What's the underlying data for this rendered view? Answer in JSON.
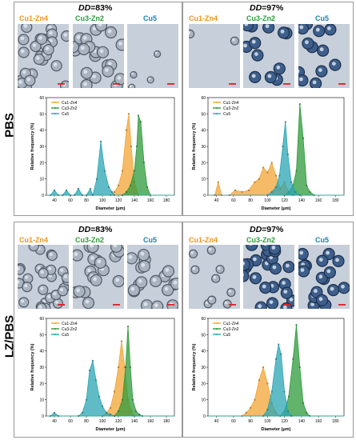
{
  "rows": [
    {
      "label": "PBS"
    },
    {
      "label": "LZ/PBS"
    }
  ],
  "dd_prefix": "DD",
  "dd_values": [
    "=83%",
    "=97%"
  ],
  "samples": [
    "Cu1-Zn4",
    "Cu3-Zn2",
    "Cu5"
  ],
  "colors": {
    "Cu1-Zn4": "#f2a434",
    "Cu3-Zn2": "#2e9a3a",
    "Cu5": "#2aa5b3"
  },
  "icons": {
    "micrograph": "micrograph-image",
    "scalebar": "red-scale-bar"
  },
  "chart_data": [
    {
      "type": "area",
      "title": "",
      "xlabel": "Diameter (μm)",
      "ylabel": "Relative frequency (%)",
      "xlim": [
        30,
        190
      ],
      "ylim": [
        0,
        60
      ],
      "xticks": [
        40,
        60,
        80,
        100,
        120,
        140,
        160,
        180
      ],
      "yticks": [
        0,
        10,
        20,
        30,
        40,
        50,
        60
      ],
      "legend": "top-left",
      "series": [
        {
          "name": "Cu1-Zn4",
          "x": [
            30,
            110,
            115,
            120,
            125,
            130,
            133,
            136,
            140,
            145,
            190
          ],
          "y": [
            0,
            0,
            2,
            6,
            15,
            40,
            50,
            30,
            8,
            0,
            0
          ]
        },
        {
          "name": "Cu3-Zn2",
          "x": [
            30,
            125,
            130,
            135,
            140,
            143,
            145,
            148,
            152,
            156,
            160,
            190
          ],
          "y": [
            0,
            0,
            2,
            6,
            15,
            30,
            49,
            45,
            20,
            5,
            0,
            0
          ]
        },
        {
          "name": "Cu5",
          "x": [
            30,
            35,
            40,
            45,
            50,
            55,
            60,
            65,
            70,
            75,
            80,
            85,
            88,
            93,
            98,
            103,
            108,
            112,
            115,
            125,
            190
          ],
          "y": [
            0,
            0,
            3,
            0,
            0,
            3,
            0,
            0,
            4,
            0,
            0,
            4,
            0,
            10,
            33,
            15,
            5,
            2,
            0,
            0,
            0
          ]
        }
      ]
    },
    {
      "type": "area",
      "title": "",
      "xlabel": "Diameter (μm)",
      "ylabel": "Relative frequency (%)",
      "xlim": [
        30,
        190
      ],
      "ylim": [
        0,
        60
      ],
      "xticks": [
        40,
        60,
        80,
        100,
        120,
        140,
        160,
        180
      ],
      "yticks": [
        0,
        10,
        20,
        30,
        40,
        50,
        60
      ],
      "legend": "top-left",
      "series": [
        {
          "name": "Cu1-Zn4",
          "x": [
            30,
            38,
            42,
            46,
            55,
            62,
            70,
            78,
            85,
            90,
            95,
            100,
            105,
            110,
            115,
            120,
            125,
            130,
            190
          ],
          "y": [
            0,
            0,
            8,
            0,
            0,
            3,
            2,
            3,
            8,
            10,
            17,
            14,
            20,
            12,
            4,
            8,
            2,
            0,
            0
          ]
        },
        {
          "name": "Cu3-Zn2",
          "x": [
            30,
            120,
            125,
            130,
            134,
            138,
            142,
            146,
            150,
            155,
            190
          ],
          "y": [
            0,
            0,
            2,
            6,
            15,
            56,
            35,
            6,
            2,
            0,
            0
          ]
        },
        {
          "name": "Cu5",
          "x": [
            30,
            100,
            105,
            110,
            114,
            118,
            121,
            124,
            128,
            133,
            138,
            190
          ],
          "y": [
            0,
            0,
            2,
            5,
            12,
            30,
            45,
            25,
            8,
            2,
            0,
            0
          ]
        }
      ]
    },
    {
      "type": "area",
      "title": "",
      "xlabel": "Diameter (μm)",
      "ylabel": "Relative frequency (%)",
      "xlim": [
        30,
        190
      ],
      "ylim": [
        0,
        60
      ],
      "xticks": [
        40,
        60,
        80,
        100,
        120,
        140,
        160,
        180
      ],
      "yticks": [
        0,
        10,
        20,
        30,
        40,
        50,
        60
      ],
      "legend": "top-left",
      "series": [
        {
          "name": "Cu1-Zn4",
          "x": [
            30,
            100,
            105,
            110,
            115,
            120,
            124,
            128,
            132,
            136,
            140,
            190
          ],
          "y": [
            0,
            0,
            2,
            5,
            15,
            30,
            46,
            30,
            10,
            3,
            0,
            0
          ]
        },
        {
          "name": "Cu3-Zn2",
          "x": [
            30,
            115,
            120,
            125,
            129,
            132,
            135,
            138,
            142,
            146,
            150,
            190
          ],
          "y": [
            0,
            0,
            3,
            10,
            30,
            55,
            30,
            10,
            3,
            1,
            0,
            0
          ]
        },
        {
          "name": "Cu5",
          "x": [
            30,
            35,
            40,
            45,
            70,
            75,
            80,
            84,
            88,
            92,
            96,
            100,
            105,
            110,
            115,
            190
          ],
          "y": [
            0,
            0,
            2,
            0,
            0,
            2,
            10,
            28,
            34,
            22,
            12,
            6,
            2,
            1,
            0,
            0
          ]
        }
      ]
    },
    {
      "type": "area",
      "title": "",
      "xlabel": "Diameter (μm)",
      "ylabel": "Relative frequency (%)",
      "xlim": [
        30,
        190
      ],
      "ylim": [
        0,
        60
      ],
      "xticks": [
        40,
        60,
        80,
        100,
        120,
        140,
        160,
        180
      ],
      "yticks": [
        0,
        10,
        20,
        30,
        40,
        50,
        60
      ],
      "legend": "top-left",
      "series": [
        {
          "name": "Cu1-Zn4",
          "x": [
            30,
            70,
            75,
            80,
            85,
            90,
            95,
            100,
            105,
            110,
            115,
            190
          ],
          "y": [
            0,
            0,
            2,
            5,
            10,
            22,
            30,
            20,
            8,
            2,
            0,
            0
          ]
        },
        {
          "name": "Cu3-Zn2",
          "x": [
            30,
            115,
            120,
            125,
            130,
            134,
            138,
            142,
            146,
            150,
            190
          ],
          "y": [
            0,
            0,
            3,
            12,
            35,
            56,
            30,
            8,
            2,
            0,
            0
          ]
        },
        {
          "name": "Cu5",
          "x": [
            30,
            95,
            100,
            105,
            110,
            113,
            116,
            120,
            124,
            128,
            190
          ],
          "y": [
            0,
            0,
            4,
            15,
            35,
            44,
            38,
            15,
            3,
            0,
            0
          ]
        }
      ]
    }
  ]
}
